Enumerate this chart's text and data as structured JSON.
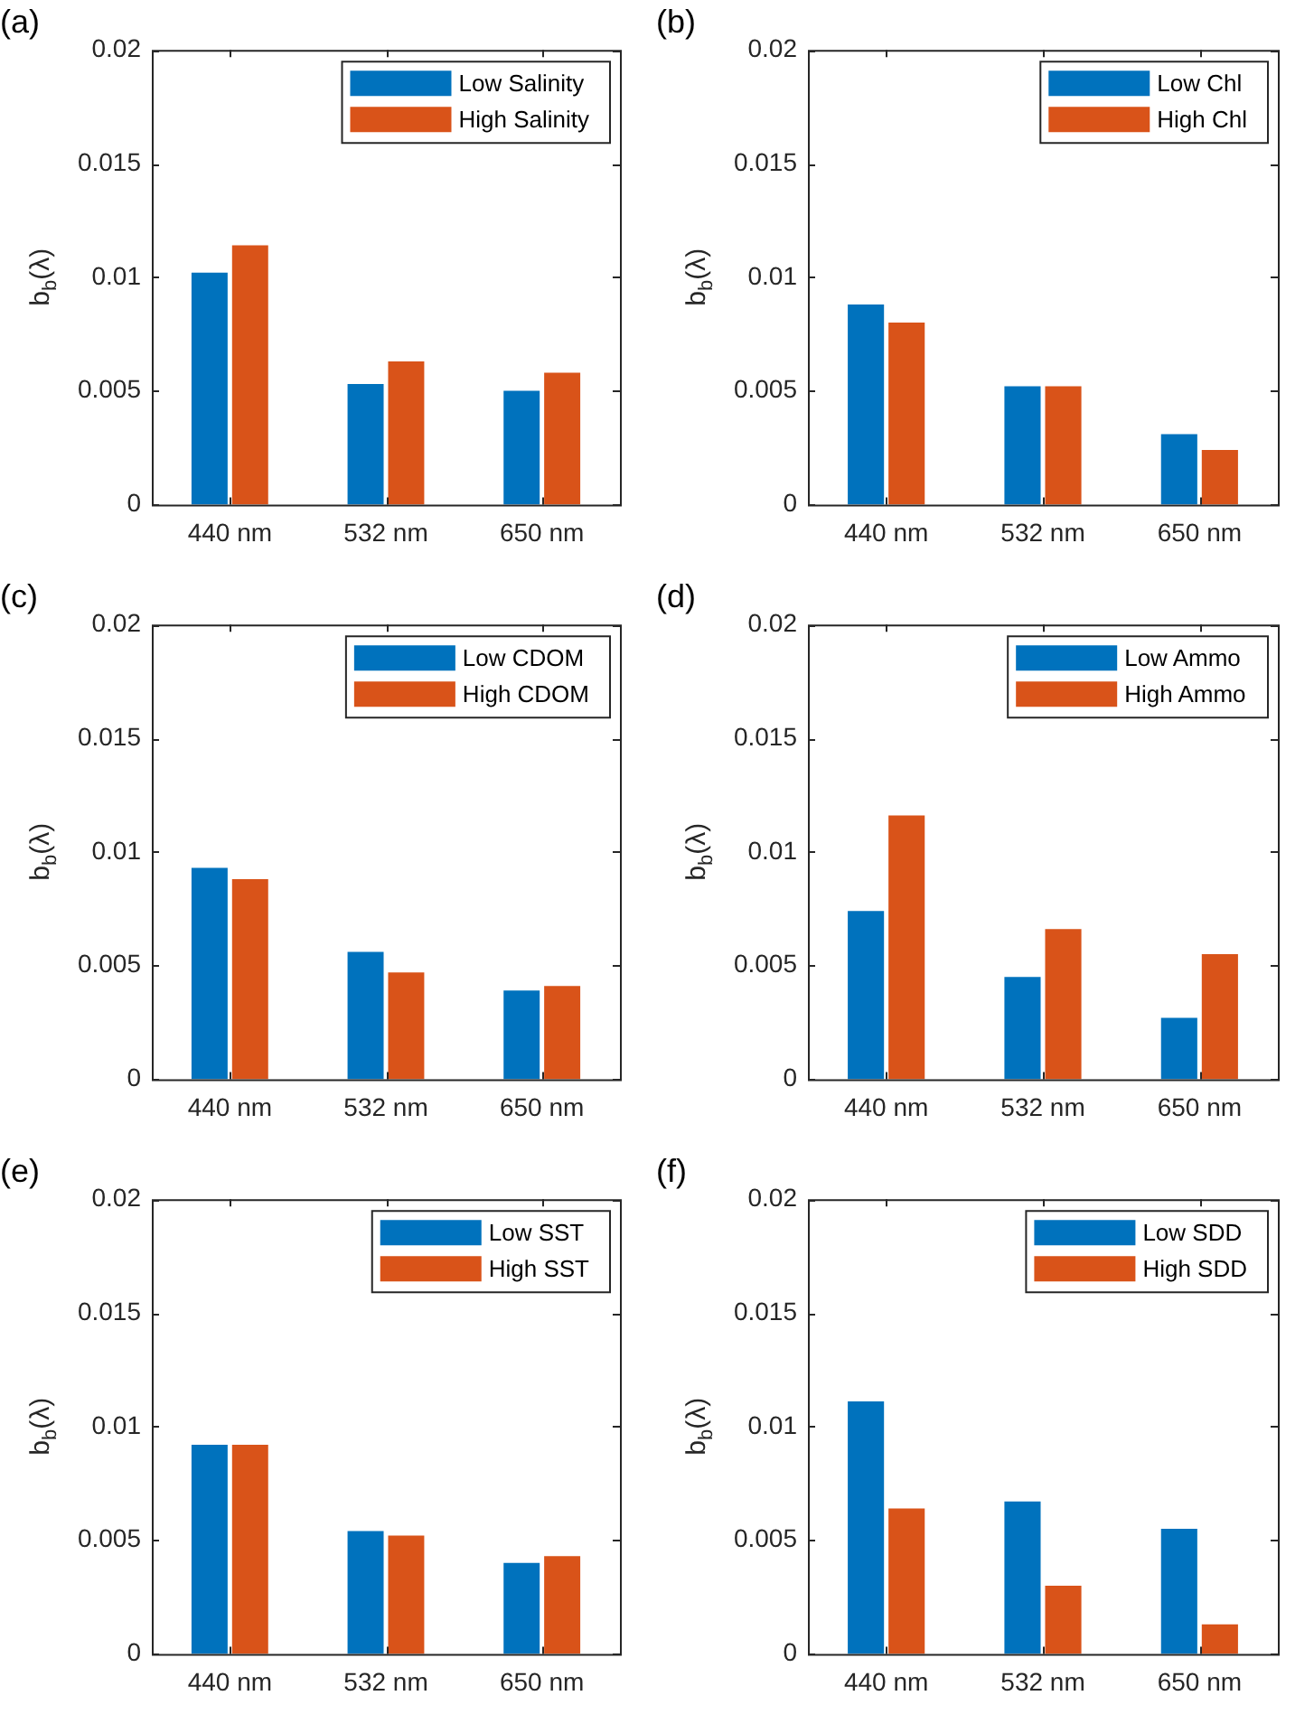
{
  "chart_data": [
    {
      "type": "bar",
      "title": "(a)",
      "ylabel": "b$_{b}$(λ)",
      "categories": [
        "440 nm",
        "532 nm",
        "650 nm"
      ],
      "ylim": [
        0,
        0.02
      ],
      "yticks": [
        0,
        0.005,
        0.01,
        0.015,
        0.02
      ],
      "grid": false,
      "legend": "top right",
      "series": [
        {
          "name": "Low Salinity",
          "color": "#0072bd",
          "values": [
            0.0102,
            0.0053,
            0.005
          ]
        },
        {
          "name": "High Salinity",
          "color": "#d95319",
          "values": [
            0.0114,
            0.0063,
            0.0058
          ]
        }
      ]
    },
    {
      "type": "bar",
      "title": "(b)",
      "ylabel": "b$_{b}$(λ)",
      "categories": [
        "440 nm",
        "532 nm",
        "650 nm"
      ],
      "ylim": [
        0,
        0.02
      ],
      "yticks": [
        0,
        0.005,
        0.01,
        0.015,
        0.02
      ],
      "grid": false,
      "legend": "top right",
      "series": [
        {
          "name": "Low Chl",
          "color": "#0072bd",
          "values": [
            0.0088,
            0.0052,
            0.0031
          ]
        },
        {
          "name": "High Chl",
          "color": "#d95319",
          "values": [
            0.008,
            0.0052,
            0.0024
          ]
        }
      ]
    },
    {
      "type": "bar",
      "title": "(c)",
      "ylabel": "b$_{b}$(λ)",
      "categories": [
        "440 nm",
        "532 nm",
        "650 nm"
      ],
      "ylim": [
        0,
        0.02
      ],
      "yticks": [
        0,
        0.005,
        0.01,
        0.015,
        0.02
      ],
      "grid": false,
      "legend": "top right",
      "series": [
        {
          "name": "Low CDOM",
          "color": "#0072bd",
          "values": [
            0.0093,
            0.0056,
            0.0039
          ]
        },
        {
          "name": "High CDOM",
          "color": "#d95319",
          "values": [
            0.0088,
            0.0047,
            0.0041
          ]
        }
      ]
    },
    {
      "type": "bar",
      "title": "(d)",
      "ylabel": "b$_{b}$(λ)",
      "categories": [
        "440 nm",
        "532 nm",
        "650 nm"
      ],
      "ylim": [
        0,
        0.02
      ],
      "yticks": [
        0,
        0.005,
        0.01,
        0.015,
        0.02
      ],
      "grid": false,
      "legend": "top right",
      "series": [
        {
          "name": "Low Ammo",
          "color": "#0072bd",
          "values": [
            0.0074,
            0.0045,
            0.0027
          ]
        },
        {
          "name": "High Ammo",
          "color": "#d95319",
          "values": [
            0.0116,
            0.0066,
            0.0055
          ]
        }
      ]
    },
    {
      "type": "bar",
      "title": "(e)",
      "ylabel": "b$_{b}$(λ)",
      "categories": [
        "440 nm",
        "532 nm",
        "650 nm"
      ],
      "ylim": [
        0,
        0.02
      ],
      "yticks": [
        0,
        0.005,
        0.01,
        0.015,
        0.02
      ],
      "grid": false,
      "legend": "top right",
      "series": [
        {
          "name": "Low SST",
          "color": "#0072bd",
          "values": [
            0.0092,
            0.0054,
            0.004
          ]
        },
        {
          "name": "High SST",
          "color": "#d95319",
          "values": [
            0.0092,
            0.0052,
            0.0043
          ]
        }
      ]
    },
    {
      "type": "bar",
      "title": "(f)",
      "ylabel": "b$_{b}$(λ)",
      "categories": [
        "440 nm",
        "532 nm",
        "650 nm"
      ],
      "ylim": [
        0,
        0.02
      ],
      "yticks": [
        0,
        0.005,
        0.01,
        0.015,
        0.02
      ],
      "grid": false,
      "legend": "top right",
      "series": [
        {
          "name": "Low SDD",
          "color": "#0072bd",
          "values": [
            0.0111,
            0.0067,
            0.0055
          ]
        },
        {
          "name": "High SDD",
          "color": "#d95319",
          "values": [
            0.0064,
            0.003,
            0.0013
          ]
        }
      ]
    }
  ]
}
